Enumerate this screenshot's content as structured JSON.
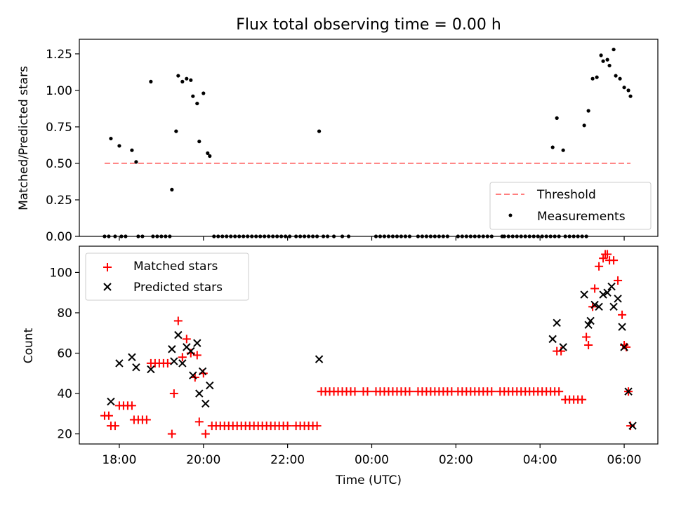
{
  "chart_data": [
    {
      "type": "scatter",
      "title": "Flux total observing time = 0.00 h",
      "xlabel": "",
      "ylabel": "Matched/Predicted stars",
      "ylim": [
        0,
        1.35
      ],
      "yticks": [
        0.0,
        0.25,
        0.5,
        0.75,
        1.0,
        1.25
      ],
      "ytick_labels": [
        "0.00",
        "0.25",
        "0.50",
        "0.75",
        "1.00",
        "1.25"
      ],
      "legend_position": "bottom-right",
      "threshold": {
        "name": "Threshold",
        "value": 0.5,
        "x_range": [
          -0.35,
          12.15
        ],
        "color": "#ff7f7f"
      },
      "measurements": {
        "name": "Measurements",
        "color": "#000000",
        "points": [
          [
            -0.35,
            0
          ],
          [
            -0.25,
            0
          ],
          [
            -0.1,
            0
          ],
          [
            0.05,
            0
          ],
          [
            0.15,
            0
          ],
          [
            0.45,
            0
          ],
          [
            0.55,
            0
          ],
          [
            0.8,
            0
          ],
          [
            0.9,
            0
          ],
          [
            1.0,
            0
          ],
          [
            1.1,
            0
          ],
          [
            1.2,
            0
          ],
          [
            -0.2,
            0.67
          ],
          [
            0.0,
            0.62
          ],
          [
            0.3,
            0.59
          ],
          [
            0.4,
            0.51
          ],
          [
            0.75,
            1.06
          ],
          [
            1.25,
            0.32
          ],
          [
            1.35,
            0.72
          ],
          [
            1.4,
            1.1
          ],
          [
            1.5,
            1.06
          ],
          [
            1.6,
            1.08
          ],
          [
            1.7,
            1.07
          ],
          [
            1.75,
            0.96
          ],
          [
            1.85,
            0.91
          ],
          [
            1.9,
            0.65
          ],
          [
            2.0,
            0.98
          ],
          [
            2.1,
            0.57
          ],
          [
            2.15,
            0.55
          ],
          [
            2.25,
            0
          ],
          [
            2.35,
            0
          ],
          [
            2.45,
            0
          ],
          [
            2.55,
            0
          ],
          [
            2.65,
            0
          ],
          [
            2.75,
            0
          ],
          [
            2.85,
            0
          ],
          [
            2.95,
            0
          ],
          [
            3.05,
            0
          ],
          [
            3.15,
            0
          ],
          [
            3.25,
            0
          ],
          [
            3.35,
            0
          ],
          [
            3.45,
            0
          ],
          [
            3.55,
            0
          ],
          [
            3.65,
            0
          ],
          [
            3.75,
            0
          ],
          [
            3.85,
            0
          ],
          [
            3.95,
            0
          ],
          [
            4.05,
            0
          ],
          [
            4.2,
            0
          ],
          [
            4.3,
            0
          ],
          [
            4.4,
            0
          ],
          [
            4.5,
            0
          ],
          [
            4.6,
            0
          ],
          [
            4.7,
            0
          ],
          [
            4.75,
            0.72
          ],
          [
            4.85,
            0
          ],
          [
            4.95,
            0
          ],
          [
            5.1,
            0
          ],
          [
            5.3,
            0
          ],
          [
            5.45,
            0
          ],
          [
            6.1,
            0
          ],
          [
            6.2,
            0
          ],
          [
            6.3,
            0
          ],
          [
            6.4,
            0
          ],
          [
            6.5,
            0
          ],
          [
            6.6,
            0
          ],
          [
            6.7,
            0
          ],
          [
            6.8,
            0
          ],
          [
            6.9,
            0
          ],
          [
            7.1,
            0
          ],
          [
            7.2,
            0
          ],
          [
            7.3,
            0
          ],
          [
            7.4,
            0
          ],
          [
            7.5,
            0
          ],
          [
            7.6,
            0
          ],
          [
            7.7,
            0
          ],
          [
            7.8,
            0
          ],
          [
            8.05,
            0
          ],
          [
            8.15,
            0
          ],
          [
            8.25,
            0
          ],
          [
            8.35,
            0
          ],
          [
            8.45,
            0
          ],
          [
            8.55,
            0
          ],
          [
            8.65,
            0
          ],
          [
            8.75,
            0
          ],
          [
            8.85,
            0
          ],
          [
            9.1,
            0
          ],
          [
            9.15,
            0
          ],
          [
            9.25,
            0
          ],
          [
            9.35,
            0
          ],
          [
            9.45,
            0
          ],
          [
            9.55,
            0
          ],
          [
            9.65,
            0
          ],
          [
            9.75,
            0
          ],
          [
            9.85,
            0
          ],
          [
            9.95,
            0
          ],
          [
            10.05,
            0
          ],
          [
            10.15,
            0
          ],
          [
            10.25,
            0
          ],
          [
            10.35,
            0
          ],
          [
            10.45,
            0
          ],
          [
            10.6,
            0
          ],
          [
            10.7,
            0
          ],
          [
            10.8,
            0
          ],
          [
            10.9,
            0
          ],
          [
            11.0,
            0
          ],
          [
            11.1,
            0
          ],
          [
            10.3,
            0.61
          ],
          [
            10.4,
            0.81
          ],
          [
            10.55,
            0.59
          ],
          [
            11.05,
            0.76
          ],
          [
            11.15,
            0.86
          ],
          [
            11.25,
            1.08
          ],
          [
            11.35,
            1.09
          ],
          [
            11.45,
            1.24
          ],
          [
            11.5,
            1.2
          ],
          [
            11.6,
            1.21
          ],
          [
            11.65,
            1.17
          ],
          [
            11.75,
            1.28
          ],
          [
            11.8,
            1.1
          ],
          [
            11.9,
            1.08
          ],
          [
            12.0,
            1.02
          ],
          [
            12.1,
            1.0
          ],
          [
            12.15,
            0.96
          ]
        ]
      }
    },
    {
      "type": "scatter",
      "title": "",
      "xlabel": "Time (UTC)",
      "ylabel": "Count",
      "ylim": [
        15,
        113
      ],
      "yticks": [
        20,
        40,
        60,
        80,
        100
      ],
      "ytick_labels": [
        "20",
        "40",
        "60",
        "80",
        "100"
      ],
      "xlim": [
        -0.95,
        12.8
      ],
      "xticks": [
        0,
        2,
        4,
        6,
        8,
        10,
        12
      ],
      "xtick_labels": [
        "18:00",
        "20:00",
        "22:00",
        "00:00",
        "02:00",
        "04:00",
        "06:00"
      ],
      "x_units": "hours after 18:00 UTC",
      "legend_position": "top-left",
      "series": [
        {
          "name": "Matched stars",
          "marker": "+",
          "color": "#ff0000",
          "points": [
            [
              -0.35,
              29
            ],
            [
              -0.25,
              29
            ],
            [
              -0.2,
              24
            ],
            [
              -0.1,
              24
            ],
            [
              0.0,
              34
            ],
            [
              0.1,
              34
            ],
            [
              0.2,
              34
            ],
            [
              0.3,
              34
            ],
            [
              0.35,
              27
            ],
            [
              0.45,
              27
            ],
            [
              0.55,
              27
            ],
            [
              0.65,
              27
            ],
            [
              0.75,
              55
            ],
            [
              0.85,
              55
            ],
            [
              0.95,
              55
            ],
            [
              1.05,
              55
            ],
            [
              1.15,
              55
            ],
            [
              1.25,
              20
            ],
            [
              1.3,
              40
            ],
            [
              1.4,
              76
            ],
            [
              1.5,
              58
            ],
            [
              1.6,
              67
            ],
            [
              1.7,
              60
            ],
            [
              1.8,
              48
            ],
            [
              1.85,
              59
            ],
            [
              1.9,
              26
            ],
            [
              2.0,
              50
            ],
            [
              2.05,
              20
            ],
            [
              2.2,
              24
            ],
            [
              2.3,
              24
            ],
            [
              2.4,
              24
            ],
            [
              2.5,
              24
            ],
            [
              2.6,
              24
            ],
            [
              2.7,
              24
            ],
            [
              2.8,
              24
            ],
            [
              2.9,
              24
            ],
            [
              3.0,
              24
            ],
            [
              3.1,
              24
            ],
            [
              3.2,
              24
            ],
            [
              3.3,
              24
            ],
            [
              3.4,
              24
            ],
            [
              3.5,
              24
            ],
            [
              3.6,
              24
            ],
            [
              3.7,
              24
            ],
            [
              3.8,
              24
            ],
            [
              3.9,
              24
            ],
            [
              4.0,
              24
            ],
            [
              4.2,
              24
            ],
            [
              4.3,
              24
            ],
            [
              4.4,
              24
            ],
            [
              4.5,
              24
            ],
            [
              4.6,
              24
            ],
            [
              4.7,
              24
            ],
            [
              4.8,
              41
            ],
            [
              4.9,
              41
            ],
            [
              5.0,
              41
            ],
            [
              5.1,
              41
            ],
            [
              5.2,
              41
            ],
            [
              5.3,
              41
            ],
            [
              5.4,
              41
            ],
            [
              5.5,
              41
            ],
            [
              5.6,
              41
            ],
            [
              5.8,
              41
            ],
            [
              5.9,
              41
            ],
            [
              6.1,
              41
            ],
            [
              6.2,
              41
            ],
            [
              6.3,
              41
            ],
            [
              6.4,
              41
            ],
            [
              6.5,
              41
            ],
            [
              6.6,
              41
            ],
            [
              6.7,
              41
            ],
            [
              6.8,
              41
            ],
            [
              6.9,
              41
            ],
            [
              7.1,
              41
            ],
            [
              7.2,
              41
            ],
            [
              7.3,
              41
            ],
            [
              7.4,
              41
            ],
            [
              7.5,
              41
            ],
            [
              7.6,
              41
            ],
            [
              7.7,
              41
            ],
            [
              7.8,
              41
            ],
            [
              7.9,
              41
            ],
            [
              8.05,
              41
            ],
            [
              8.15,
              41
            ],
            [
              8.25,
              41
            ],
            [
              8.35,
              41
            ],
            [
              8.45,
              41
            ],
            [
              8.55,
              41
            ],
            [
              8.65,
              41
            ],
            [
              8.75,
              41
            ],
            [
              8.85,
              41
            ],
            [
              9.05,
              41
            ],
            [
              9.15,
              41
            ],
            [
              9.25,
              41
            ],
            [
              9.35,
              41
            ],
            [
              9.45,
              41
            ],
            [
              9.55,
              41
            ],
            [
              9.65,
              41
            ],
            [
              9.75,
              41
            ],
            [
              9.85,
              41
            ],
            [
              9.95,
              41
            ],
            [
              10.05,
              41
            ],
            [
              10.15,
              41
            ],
            [
              10.25,
              41
            ],
            [
              10.35,
              41
            ],
            [
              10.45,
              41
            ],
            [
              10.4,
              61
            ],
            [
              10.5,
              61
            ],
            [
              10.6,
              37
            ],
            [
              10.7,
              37
            ],
            [
              10.8,
              37
            ],
            [
              10.9,
              37
            ],
            [
              11.0,
              37
            ],
            [
              11.1,
              68
            ],
            [
              11.15,
              64
            ],
            [
              11.25,
              83
            ],
            [
              11.3,
              92
            ],
            [
              11.4,
              103
            ],
            [
              11.5,
              107
            ],
            [
              11.55,
              109
            ],
            [
              11.6,
              109
            ],
            [
              11.65,
              106
            ],
            [
              11.75,
              106
            ],
            [
              11.85,
              96
            ],
            [
              11.95,
              79
            ],
            [
              12.0,
              64
            ],
            [
              12.05,
              63
            ],
            [
              12.1,
              41
            ],
            [
              12.15,
              24
            ]
          ]
        },
        {
          "name": "Predicted stars",
          "marker": "x",
          "color": "#000000",
          "points": [
            [
              -0.2,
              36
            ],
            [
              0.0,
              55
            ],
            [
              0.3,
              58
            ],
            [
              0.4,
              53
            ],
            [
              0.75,
              52
            ],
            [
              1.25,
              62
            ],
            [
              1.3,
              56
            ],
            [
              1.4,
              69
            ],
            [
              1.5,
              55
            ],
            [
              1.6,
              63
            ],
            [
              1.7,
              61
            ],
            [
              1.75,
              49
            ],
            [
              1.85,
              65
            ],
            [
              1.9,
              40
            ],
            [
              1.98,
              51
            ],
            [
              2.05,
              35
            ],
            [
              2.15,
              44
            ],
            [
              4.75,
              57
            ],
            [
              10.3,
              67
            ],
            [
              10.4,
              75
            ],
            [
              10.55,
              63
            ],
            [
              11.05,
              89
            ],
            [
              11.15,
              74
            ],
            [
              11.2,
              76
            ],
            [
              11.3,
              84
            ],
            [
              11.4,
              83
            ],
            [
              11.5,
              89
            ],
            [
              11.6,
              90
            ],
            [
              11.7,
              93
            ],
            [
              11.75,
              83
            ],
            [
              11.85,
              87
            ],
            [
              11.95,
              73
            ],
            [
              12.0,
              63
            ],
            [
              12.1,
              41
            ],
            [
              12.2,
              24
            ]
          ]
        }
      ]
    }
  ]
}
